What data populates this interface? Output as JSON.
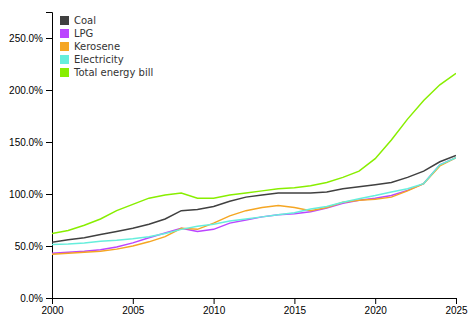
{
  "chart_data": {
    "type": "line",
    "x": [
      2000,
      2001,
      2002,
      2003,
      2004,
      2005,
      2006,
      2007,
      2008,
      2009,
      2010,
      2011,
      2012,
      2013,
      2014,
      2015,
      2016,
      2017,
      2018,
      2019,
      2020,
      2021,
      2022,
      2023,
      2024,
      2025
    ],
    "series": [
      {
        "name": "Coal",
        "color": "#404040",
        "values": [
          0.535,
          0.56,
          0.58,
          0.61,
          0.64,
          0.67,
          0.71,
          0.76,
          0.84,
          0.85,
          0.88,
          0.93,
          0.97,
          0.99,
          1.01,
          1.01,
          1.01,
          1.02,
          1.05,
          1.07,
          1.09,
          1.11,
          1.16,
          1.22,
          1.31,
          1.37
        ]
      },
      {
        "name": "LPG",
        "color": "#bb44ff",
        "values": [
          0.43,
          0.44,
          0.45,
          0.465,
          0.49,
          0.53,
          0.58,
          0.625,
          0.67,
          0.64,
          0.66,
          0.72,
          0.75,
          0.78,
          0.8,
          0.81,
          0.83,
          0.865,
          0.91,
          0.94,
          0.96,
          0.985,
          1.035,
          1.1,
          1.28,
          1.35
        ]
      },
      {
        "name": "Kerosene",
        "color": "#f5a623",
        "values": [
          0.42,
          0.43,
          0.44,
          0.45,
          0.47,
          0.5,
          0.54,
          0.59,
          0.67,
          0.66,
          0.72,
          0.79,
          0.84,
          0.87,
          0.89,
          0.87,
          0.84,
          0.87,
          0.92,
          0.94,
          0.95,
          0.97,
          1.03,
          1.1,
          1.27,
          1.35
        ]
      },
      {
        "name": "Electricity",
        "color": "#66eedc",
        "values": [
          0.515,
          0.52,
          0.53,
          0.545,
          0.555,
          0.57,
          0.59,
          0.62,
          0.66,
          0.69,
          0.71,
          0.74,
          0.76,
          0.78,
          0.8,
          0.82,
          0.855,
          0.88,
          0.92,
          0.955,
          0.985,
          1.02,
          1.05,
          1.1,
          1.28,
          1.35
        ]
      },
      {
        "name": "Total energy bill",
        "color": "#88ee00",
        "values": [
          0.62,
          0.65,
          0.7,
          0.76,
          0.84,
          0.9,
          0.96,
          0.99,
          1.01,
          0.96,
          0.96,
          0.99,
          1.01,
          1.03,
          1.05,
          1.06,
          1.08,
          1.11,
          1.16,
          1.22,
          1.34,
          1.52,
          1.72,
          1.9,
          2.05,
          2.16
        ]
      }
    ],
    "xlim": [
      2000,
      2025
    ],
    "xticks": [
      2000,
      2005,
      2010,
      2015,
      2020,
      2025
    ],
    "ylim": [
      0.0,
      2.75
    ],
    "yticks": [
      {
        "value": 0.0,
        "label": "0.0%"
      },
      {
        "value": 0.5,
        "label": "50.0%"
      },
      {
        "value": 1.0,
        "label": "100.0%"
      },
      {
        "value": 1.5,
        "label": "150.0%"
      },
      {
        "value": 2.0,
        "label": "200.0%"
      },
      {
        "value": 2.5,
        "label": "250.0%"
      }
    ],
    "grid": false,
    "legend": "upper left"
  }
}
